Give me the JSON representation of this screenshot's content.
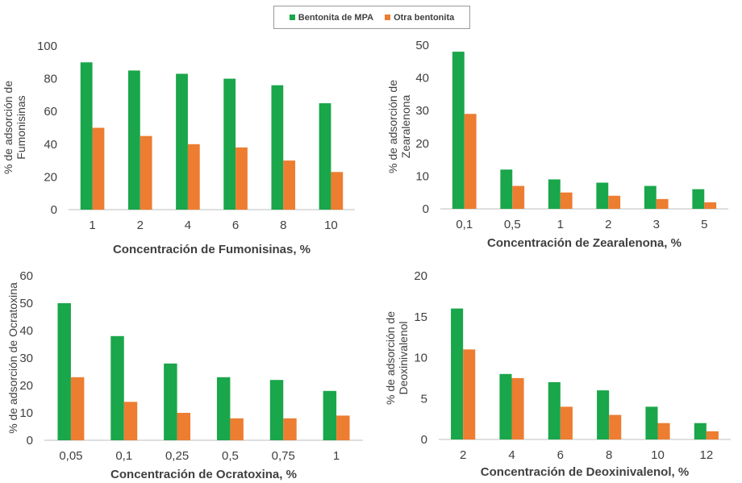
{
  "legend": {
    "series_a": "Bentonita de MPA",
    "series_b": "Otra bentonita"
  },
  "colors": {
    "series_a": "#1aa64a",
    "series_b": "#ed7d31",
    "axis": "#bfbfbf",
    "text": "#404040"
  },
  "chart_data": [
    {
      "type": "bar",
      "categories": [
        "1",
        "2",
        "4",
        "6",
        "8",
        "10"
      ],
      "series": [
        {
          "name": "Bentonita de MPA",
          "values": [
            90,
            85,
            83,
            80,
            76,
            65
          ]
        },
        {
          "name": "Otra bentonita",
          "values": [
            50,
            45,
            40,
            38,
            30,
            23
          ]
        }
      ],
      "ylim": [
        0,
        100
      ],
      "yticks": [
        "0",
        "20",
        "40",
        "60",
        "80",
        "100"
      ],
      "ytick_values": [
        0,
        20,
        40,
        60,
        80,
        100
      ],
      "xlabel": "Concentración de Fumonisinas, %",
      "ylabel_lines": [
        "% de adsorción de",
        "Fumonisinas"
      ],
      "grid": false
    },
    {
      "type": "bar",
      "categories": [
        "0,1",
        "0,5",
        "1",
        "2",
        "3",
        "5"
      ],
      "series": [
        {
          "name": "Bentonita de MPA",
          "values": [
            48,
            12,
            9,
            8,
            7,
            6
          ]
        },
        {
          "name": "Otra bentonita",
          "values": [
            29,
            7,
            5,
            4,
            3,
            2
          ]
        }
      ],
      "ylim": [
        0,
        50
      ],
      "yticks": [
        "0",
        "10",
        "20",
        "30",
        "40",
        "50"
      ],
      "ytick_values": [
        0,
        10,
        20,
        30,
        40,
        50
      ],
      "xlabel": "Concentración de Zearalenona, %",
      "ylabel_lines": [
        "% de adsorción de",
        "Zearalenona"
      ],
      "grid": false
    },
    {
      "type": "bar",
      "categories": [
        "0,05",
        "0,1",
        "0,25",
        "0,5",
        "0,75",
        "1"
      ],
      "series": [
        {
          "name": "Bentonita de MPA",
          "values": [
            50,
            38,
            28,
            23,
            22,
            18
          ]
        },
        {
          "name": "Otra bentonita",
          "values": [
            23,
            14,
            10,
            8,
            8,
            9
          ]
        }
      ],
      "ylim": [
        0,
        60
      ],
      "yticks": [
        "0",
        "10",
        "20",
        "30",
        "40",
        "50",
        "60"
      ],
      "ytick_values": [
        0,
        10,
        20,
        30,
        40,
        50,
        60
      ],
      "xlabel": "Concentración de Ocratoxina, %",
      "ylabel_lines": [
        "% de adsorción de Ocratoxina"
      ],
      "grid": false
    },
    {
      "type": "bar",
      "categories": [
        "2",
        "4",
        "6",
        "8",
        "10",
        "12"
      ],
      "series": [
        {
          "name": "Bentonita de MPA",
          "values": [
            16,
            8,
            7,
            6,
            4,
            2
          ]
        },
        {
          "name": "Otra bentonita",
          "values": [
            11,
            7.5,
            4,
            3,
            2,
            1
          ]
        }
      ],
      "ylim": [
        0,
        20
      ],
      "yticks": [
        "0",
        "5",
        "10",
        "15",
        "20"
      ],
      "ytick_values": [
        0,
        5,
        10,
        15,
        20
      ],
      "xlabel": "Concentración de Deoxinivalenol, %",
      "ylabel_lines": [
        "% de adsorción de",
        "Deoxinivalenol"
      ],
      "grid": false
    }
  ]
}
